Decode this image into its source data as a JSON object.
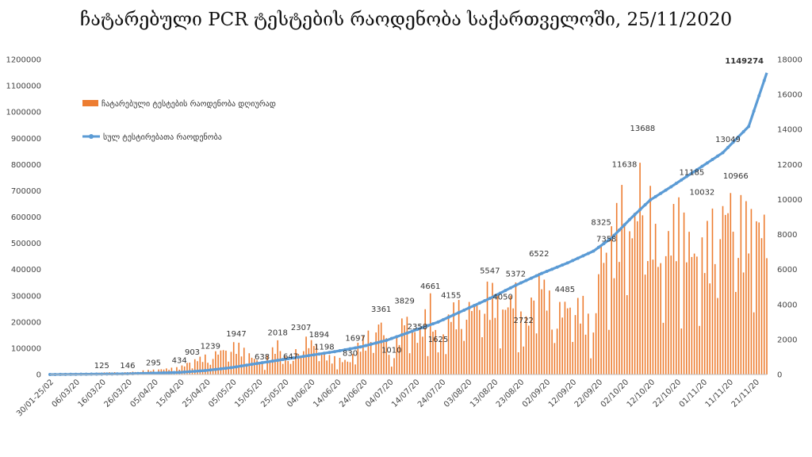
{
  "page_title": "ჩატარებული PCR ტესტების რაოდენობა საქართველოში, 25/11/2020",
  "chart_data": {
    "type": "bar+line",
    "title": "ჩატარებული PCR ტესტების რაოდენობა საქართველოში, 25/11/2020",
    "legend": {
      "placement": "top-left",
      "entries": [
        {
          "name": "ჩატარებული ტესტების რაოდენობა დღიურად",
          "color": "#ED7D31",
          "kind": "bar"
        },
        {
          "name": "სულ ტესტირებათა რაოდენობა",
          "color": "#5B9BD5",
          "kind": "line"
        }
      ]
    },
    "x_tick_labels": [
      "30/01-25/02",
      "06/03/20",
      "16/03/20",
      "26/03/20",
      "05/04/20",
      "15/04/20",
      "25/04/20",
      "05/05/20",
      "15/05/20",
      "25/05/20",
      "04/06/20",
      "14/06/20",
      "24/06/20",
      "04/07/20",
      "14/07/20",
      "24/07/20",
      "03/08/20",
      "13/08/20",
      "23/08/20",
      "02/09/20",
      "12/09/20",
      "22/09/20",
      "02/10/20",
      "12/10/20",
      "22/10/20",
      "01/11/20",
      "11/11/20",
      "21/11/20"
    ],
    "left_axis": {
      "series": "სულ ტესტირებათა რაოდენობა",
      "ylim": [
        0,
        1200000
      ],
      "ticks": [
        "0",
        "100000",
        "200000",
        "300000",
        "400000",
        "500000",
        "600000",
        "700000",
        "800000",
        "900000",
        "1000000",
        "1100000",
        "1200000"
      ]
    },
    "right_axis": {
      "series": "ჩატარებული ტესტების რაოდენობა დღიურად",
      "ylim": [
        0,
        18000
      ],
      "ticks": [
        "0",
        "2000",
        "4000",
        "6000",
        "8000",
        "10000",
        "12000",
        "14000",
        "16000",
        "18000"
      ]
    },
    "period_days": 277,
    "daily_points": [
      {
        "day": 0,
        "value": 0
      },
      {
        "day": 10,
        "value": 30
      },
      {
        "day": 20,
        "value": 125
      },
      {
        "day": 30,
        "value": 146
      },
      {
        "day": 40,
        "value": 295
      },
      {
        "day": 50,
        "value": 434
      },
      {
        "day": 55,
        "value": 903
      },
      {
        "day": 62,
        "value": 1239
      },
      {
        "day": 72,
        "value": 1947
      },
      {
        "day": 82,
        "value": 638
      },
      {
        "day": 88,
        "value": 2018
      },
      {
        "day": 93,
        "value": 647
      },
      {
        "day": 97,
        "value": 2307
      },
      {
        "day": 104,
        "value": 1894
      },
      {
        "day": 106,
        "value": 1198
      },
      {
        "day": 116,
        "value": 830
      },
      {
        "day": 118,
        "value": 1697
      },
      {
        "day": 128,
        "value": 3361
      },
      {
        "day": 132,
        "value": 1010
      },
      {
        "day": 137,
        "value": 3829
      },
      {
        "day": 142,
        "value": 2358
      },
      {
        "day": 147,
        "value": 4661
      },
      {
        "day": 150,
        "value": 1625
      },
      {
        "day": 155,
        "value": 4155
      },
      {
        "day": 165,
        "value": 4500
      },
      {
        "day": 170,
        "value": 5547
      },
      {
        "day": 175,
        "value": 4050
      },
      {
        "day": 180,
        "value": 5372
      },
      {
        "day": 183,
        "value": 2722
      },
      {
        "day": 189,
        "value": 6522
      },
      {
        "day": 195,
        "value": 4000
      },
      {
        "day": 199,
        "value": 4485
      },
      {
        "day": 206,
        "value": 4500
      },
      {
        "day": 210,
        "value": 2500
      },
      {
        "day": 213,
        "value": 8325
      },
      {
        "day": 215,
        "value": 7358
      },
      {
        "day": 222,
        "value": 11638
      },
      {
        "day": 225,
        "value": 9000
      },
      {
        "day": 229,
        "value": 13688
      },
      {
        "day": 236,
        "value": 7000
      },
      {
        "day": 242,
        "value": 10500
      },
      {
        "day": 250,
        "value": 7500
      },
      {
        "day": 256,
        "value": 9500
      },
      {
        "day": 263,
        "value": 11185
      },
      {
        "day": 268,
        "value": 10032
      },
      {
        "day": 274,
        "value": 9800
      },
      {
        "day": 277,
        "value": 9500
      }
    ],
    "cumulative_points": [
      {
        "day": 0,
        "value": 0
      },
      {
        "day": 30,
        "value": 2500
      },
      {
        "day": 50,
        "value": 8000
      },
      {
        "day": 60,
        "value": 15000
      },
      {
        "day": 70,
        "value": 26000
      },
      {
        "day": 80,
        "value": 42000
      },
      {
        "day": 90,
        "value": 57000
      },
      {
        "day": 100,
        "value": 72000
      },
      {
        "day": 110,
        "value": 87000
      },
      {
        "day": 120,
        "value": 105000
      },
      {
        "day": 130,
        "value": 130000
      },
      {
        "day": 140,
        "value": 165000
      },
      {
        "day": 150,
        "value": 200000
      },
      {
        "day": 160,
        "value": 245000
      },
      {
        "day": 170,
        "value": 290000
      },
      {
        "day": 180,
        "value": 340000
      },
      {
        "day": 190,
        "value": 385000
      },
      {
        "day": 200,
        "value": 425000
      },
      {
        "day": 210,
        "value": 470000
      },
      {
        "day": 217,
        "value": 520000
      },
      {
        "day": 225,
        "value": 600000
      },
      {
        "day": 232,
        "value": 665000
      },
      {
        "day": 240,
        "value": 715000
      },
      {
        "day": 250,
        "value": 780000
      },
      {
        "day": 260,
        "value": 845000
      },
      {
        "day": 270,
        "value": 945000
      },
      {
        "day": 277,
        "value": 1149274
      }
    ],
    "data_labels": [
      {
        "series": "daily",
        "day": 20,
        "value": 125,
        "text": "125"
      },
      {
        "series": "daily",
        "day": 30,
        "value": 146,
        "text": "146"
      },
      {
        "series": "daily",
        "day": 40,
        "value": 295,
        "text": "295"
      },
      {
        "series": "daily",
        "day": 50,
        "value": 434,
        "text": "434"
      },
      {
        "series": "daily",
        "day": 55,
        "value": 903,
        "text": "903"
      },
      {
        "series": "daily",
        "day": 62,
        "value": 1239,
        "text": "1239"
      },
      {
        "series": "daily",
        "day": 72,
        "value": 1947,
        "text": "1947"
      },
      {
        "series": "daily",
        "day": 82,
        "value": 638,
        "text": "638"
      },
      {
        "series": "daily",
        "day": 88,
        "value": 2018,
        "text": "2018"
      },
      {
        "series": "daily",
        "day": 93,
        "value": 647,
        "text": "647"
      },
      {
        "series": "daily",
        "day": 97,
        "value": 2307,
        "text": "2307"
      },
      {
        "series": "daily",
        "day": 104,
        "value": 1894,
        "text": "1894"
      },
      {
        "series": "daily",
        "day": 106,
        "value": 1198,
        "text": "1198"
      },
      {
        "series": "daily",
        "day": 116,
        "value": 830,
        "text": "830"
      },
      {
        "series": "daily",
        "day": 118,
        "value": 1697,
        "text": "1697"
      },
      {
        "series": "daily",
        "day": 128,
        "value": 3361,
        "text": "3361"
      },
      {
        "series": "daily",
        "day": 132,
        "value": 1010,
        "text": "1010"
      },
      {
        "series": "daily",
        "day": 137,
        "value": 3829,
        "text": "3829"
      },
      {
        "series": "daily",
        "day": 142,
        "value": 2358,
        "text": "2358"
      },
      {
        "series": "daily",
        "day": 147,
        "value": 4661,
        "text": "4661"
      },
      {
        "series": "daily",
        "day": 150,
        "value": 1625,
        "text": "1625"
      },
      {
        "series": "daily",
        "day": 155,
        "value": 4155,
        "text": "4155"
      },
      {
        "series": "daily",
        "day": 170,
        "value": 5547,
        "text": "5547"
      },
      {
        "series": "daily",
        "day": 175,
        "value": 4050,
        "text": "4050"
      },
      {
        "series": "daily",
        "day": 180,
        "value": 5372,
        "text": "5372"
      },
      {
        "series": "daily",
        "day": 183,
        "value": 2722,
        "text": "2722"
      },
      {
        "series": "daily",
        "day": 189,
        "value": 6522,
        "text": "6522"
      },
      {
        "series": "daily",
        "day": 199,
        "value": 4485,
        "text": "4485"
      },
      {
        "series": "daily",
        "day": 213,
        "value": 8325,
        "text": "8325"
      },
      {
        "series": "daily",
        "day": 215,
        "value": 7358,
        "text": "7358"
      },
      {
        "series": "daily",
        "day": 222,
        "value": 11638,
        "text": "11638"
      },
      {
        "series": "daily",
        "day": 229,
        "value": 13688,
        "text": "13688"
      },
      {
        "series": "daily",
        "day": 248,
        "value": 11185,
        "text": "11185"
      },
      {
        "series": "daily",
        "day": 252,
        "value": 10032,
        "text": "10032"
      },
      {
        "series": "daily",
        "day": 262,
        "value": 13049,
        "text": "13049"
      },
      {
        "series": "daily",
        "day": 265,
        "value": 10966,
        "text": "10966"
      },
      {
        "series": "cumulative",
        "day": 277,
        "value": 1149274,
        "text": "1149274",
        "highlight": "#C00000"
      }
    ],
    "colors": {
      "bar": "#ED7D31",
      "line": "#5B9BD5",
      "axis_text": "#444444",
      "highlight": "#C00000"
    },
    "grid": false
  }
}
